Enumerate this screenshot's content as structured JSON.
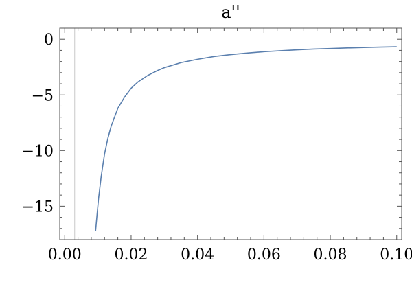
{
  "chart_data": {
    "type": "line",
    "title": "a''",
    "xlabel": "",
    "ylabel": "",
    "xlim": [
      -0.0015,
      0.1015
    ],
    "ylim": [
      -18,
      1
    ],
    "x_ticks": [
      {
        "value": 0.0,
        "label": "0.00"
      },
      {
        "value": 0.02,
        "label": "0.02"
      },
      {
        "value": 0.04,
        "label": "0.04"
      },
      {
        "value": 0.06,
        "label": "0.06"
      },
      {
        "value": 0.08,
        "label": "0.08"
      },
      {
        "value": 0.1,
        "label": "0.10"
      }
    ],
    "y_ticks": [
      {
        "value": 0,
        "label": "0"
      },
      {
        "value": -5,
        "label": "−5"
      },
      {
        "value": -10,
        "label": "−10"
      },
      {
        "value": -15,
        "label": "−15"
      }
    ],
    "reference_line_x": 0.003,
    "series": [
      {
        "x": [
          0.0093,
          0.0097,
          0.0102,
          0.011,
          0.012,
          0.013,
          0.014,
          0.016,
          0.018,
          0.02,
          0.022,
          0.025,
          0.028,
          0.03,
          0.035,
          0.04,
          0.045,
          0.05,
          0.055,
          0.06,
          0.065,
          0.07,
          0.075,
          0.08,
          0.085,
          0.09,
          0.095,
          0.1
        ],
        "y": [
          -17.2,
          -15.9,
          -14.3,
          -12.3,
          -10.3,
          -8.9,
          -7.8,
          -6.2,
          -5.2,
          -4.4,
          -3.85,
          -3.25,
          -2.8,
          -2.55,
          -2.1,
          -1.8,
          -1.55,
          -1.38,
          -1.24,
          -1.12,
          -1.03,
          -0.95,
          -0.88,
          -0.83,
          -0.78,
          -0.74,
          -0.7,
          -0.67
        ]
      }
    ],
    "colors": {
      "series": "#5a7fae",
      "frame": "#555555",
      "reference": "#c8c8c8"
    },
    "grid": false,
    "legend": "none"
  }
}
